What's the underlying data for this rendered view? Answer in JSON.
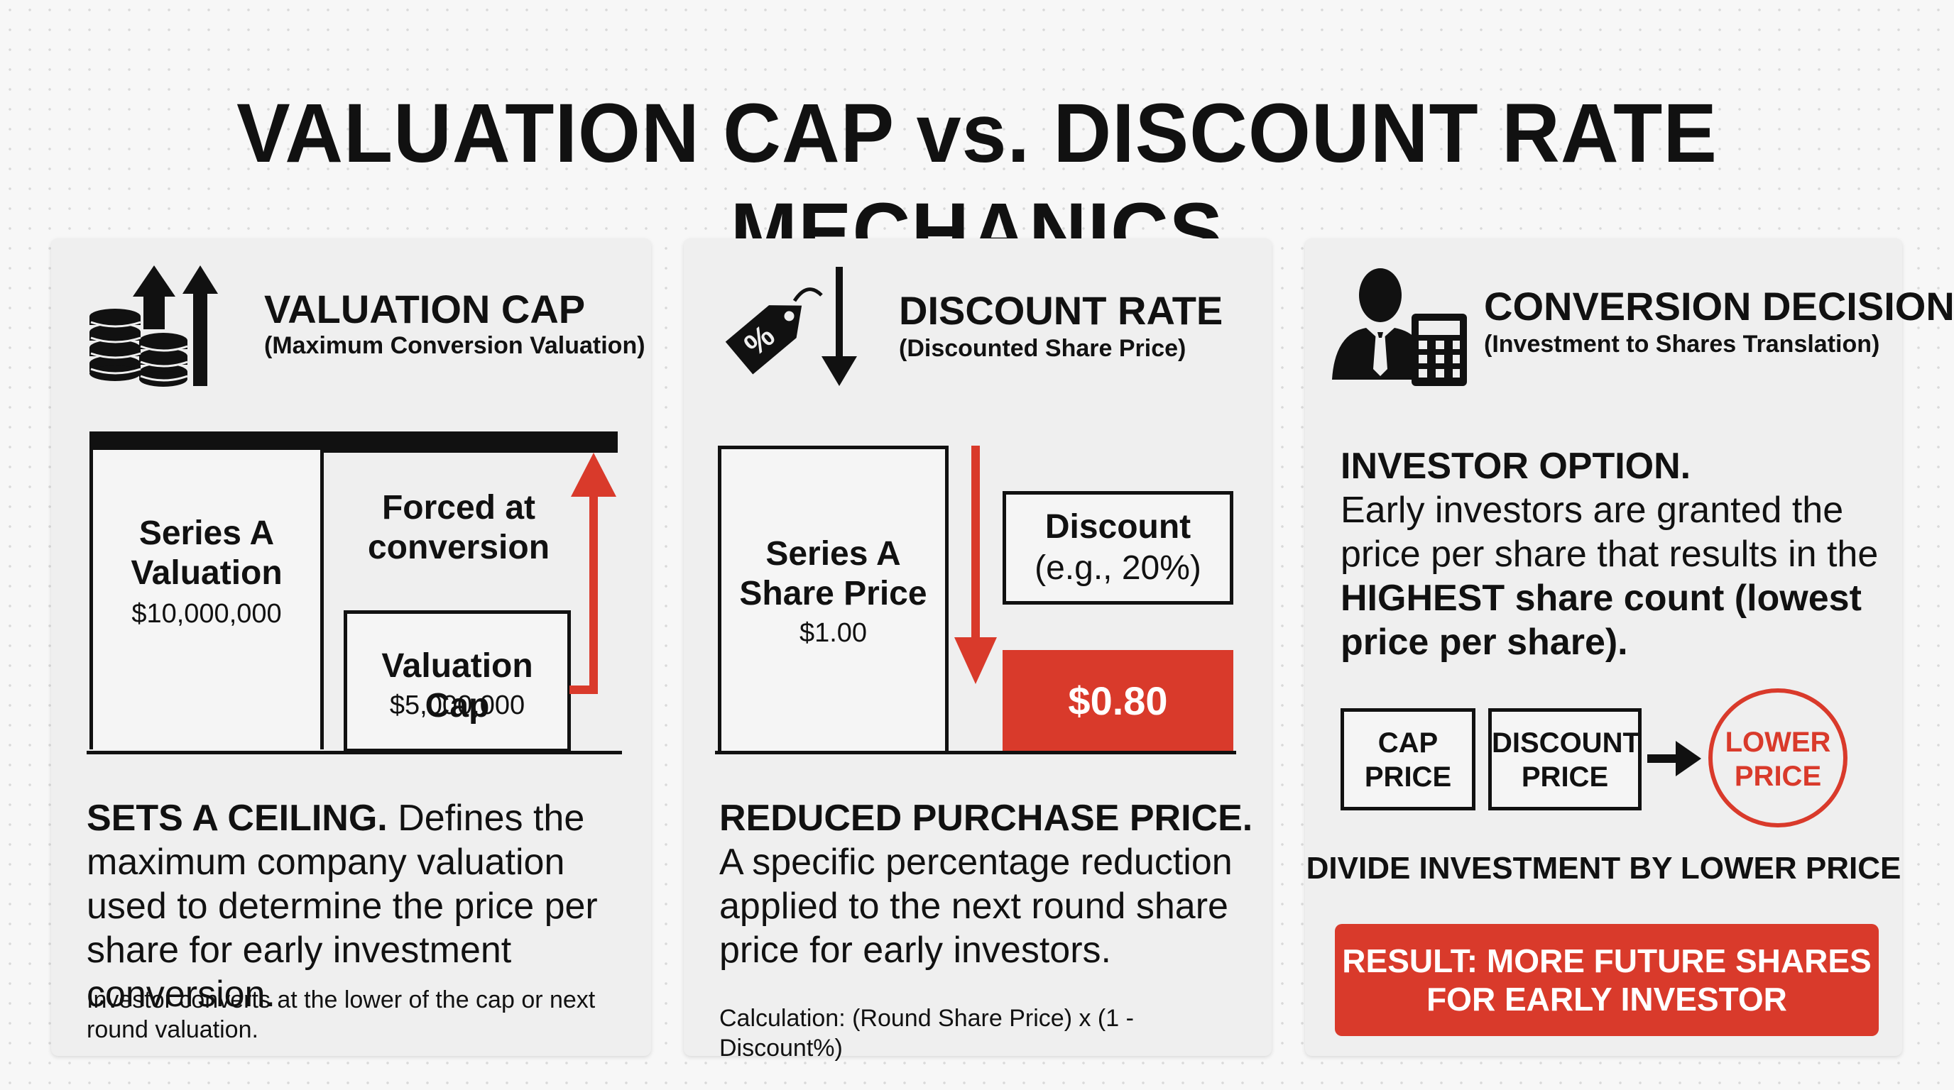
{
  "title": "VALUATION CAP vs. DISCOUNT RATE MECHANICS",
  "colors": {
    "accent": "#d93a2b",
    "ink": "#111111",
    "panel": "#efefef"
  },
  "panels": {
    "cap": {
      "icon": "coins-arrows-up-icon",
      "title": "VALUATION CAP",
      "subtitle": "(Maximum Conversion Valuation)",
      "series_label": "Series A\nValuation",
      "series_value": "$10,000,000",
      "forced_label": "Forced at\nconversion",
      "cap_label": "Valuation Cap",
      "cap_value": "$5,000,000",
      "desc_bold": "SETS A CEILING.",
      "desc_text": " Defines the maximum company valuation used to determine the price per share for early investment conversion.",
      "note": "Investor converts at the lower of the cap or next round valuation."
    },
    "discount": {
      "icon": "price-tag-percent-icon",
      "title": "DISCOUNT RATE",
      "subtitle": "(Discounted Share Price)",
      "series_label": "Series A\nShare Price",
      "series_value": "$1.00",
      "discount_label": "Discount",
      "discount_value": "(e.g., 20%)",
      "discounted_price": "$0.80",
      "desc_bold": "REDUCED PURCHASE PRICE.",
      "desc_text": "A specific percentage reduction applied to the next round share price for early investors.",
      "note": "Calculation: (Round Share Price) x (1 - Discount%)"
    },
    "conversion": {
      "icon": "investor-calculator-icon",
      "title": "CONVERSION DECISION",
      "subtitle": "(Investment to Shares Translation)",
      "option_bold": "INVESTOR OPTION.",
      "option_text": "Early investors are granted the price per share that results in the",
      "option_emphasis": "HIGHEST share count (lowest price per share).",
      "cap_price": "CAP\nPRICE",
      "discount_price": "DISCOUNT\nPRICE",
      "lower_price": "LOWER\nPRICE",
      "divide_text": "DIVIDE INVESTMENT BY LOWER PRICE",
      "result": "RESULT: MORE FUTURE SHARES\nFOR EARLY INVESTOR"
    }
  }
}
